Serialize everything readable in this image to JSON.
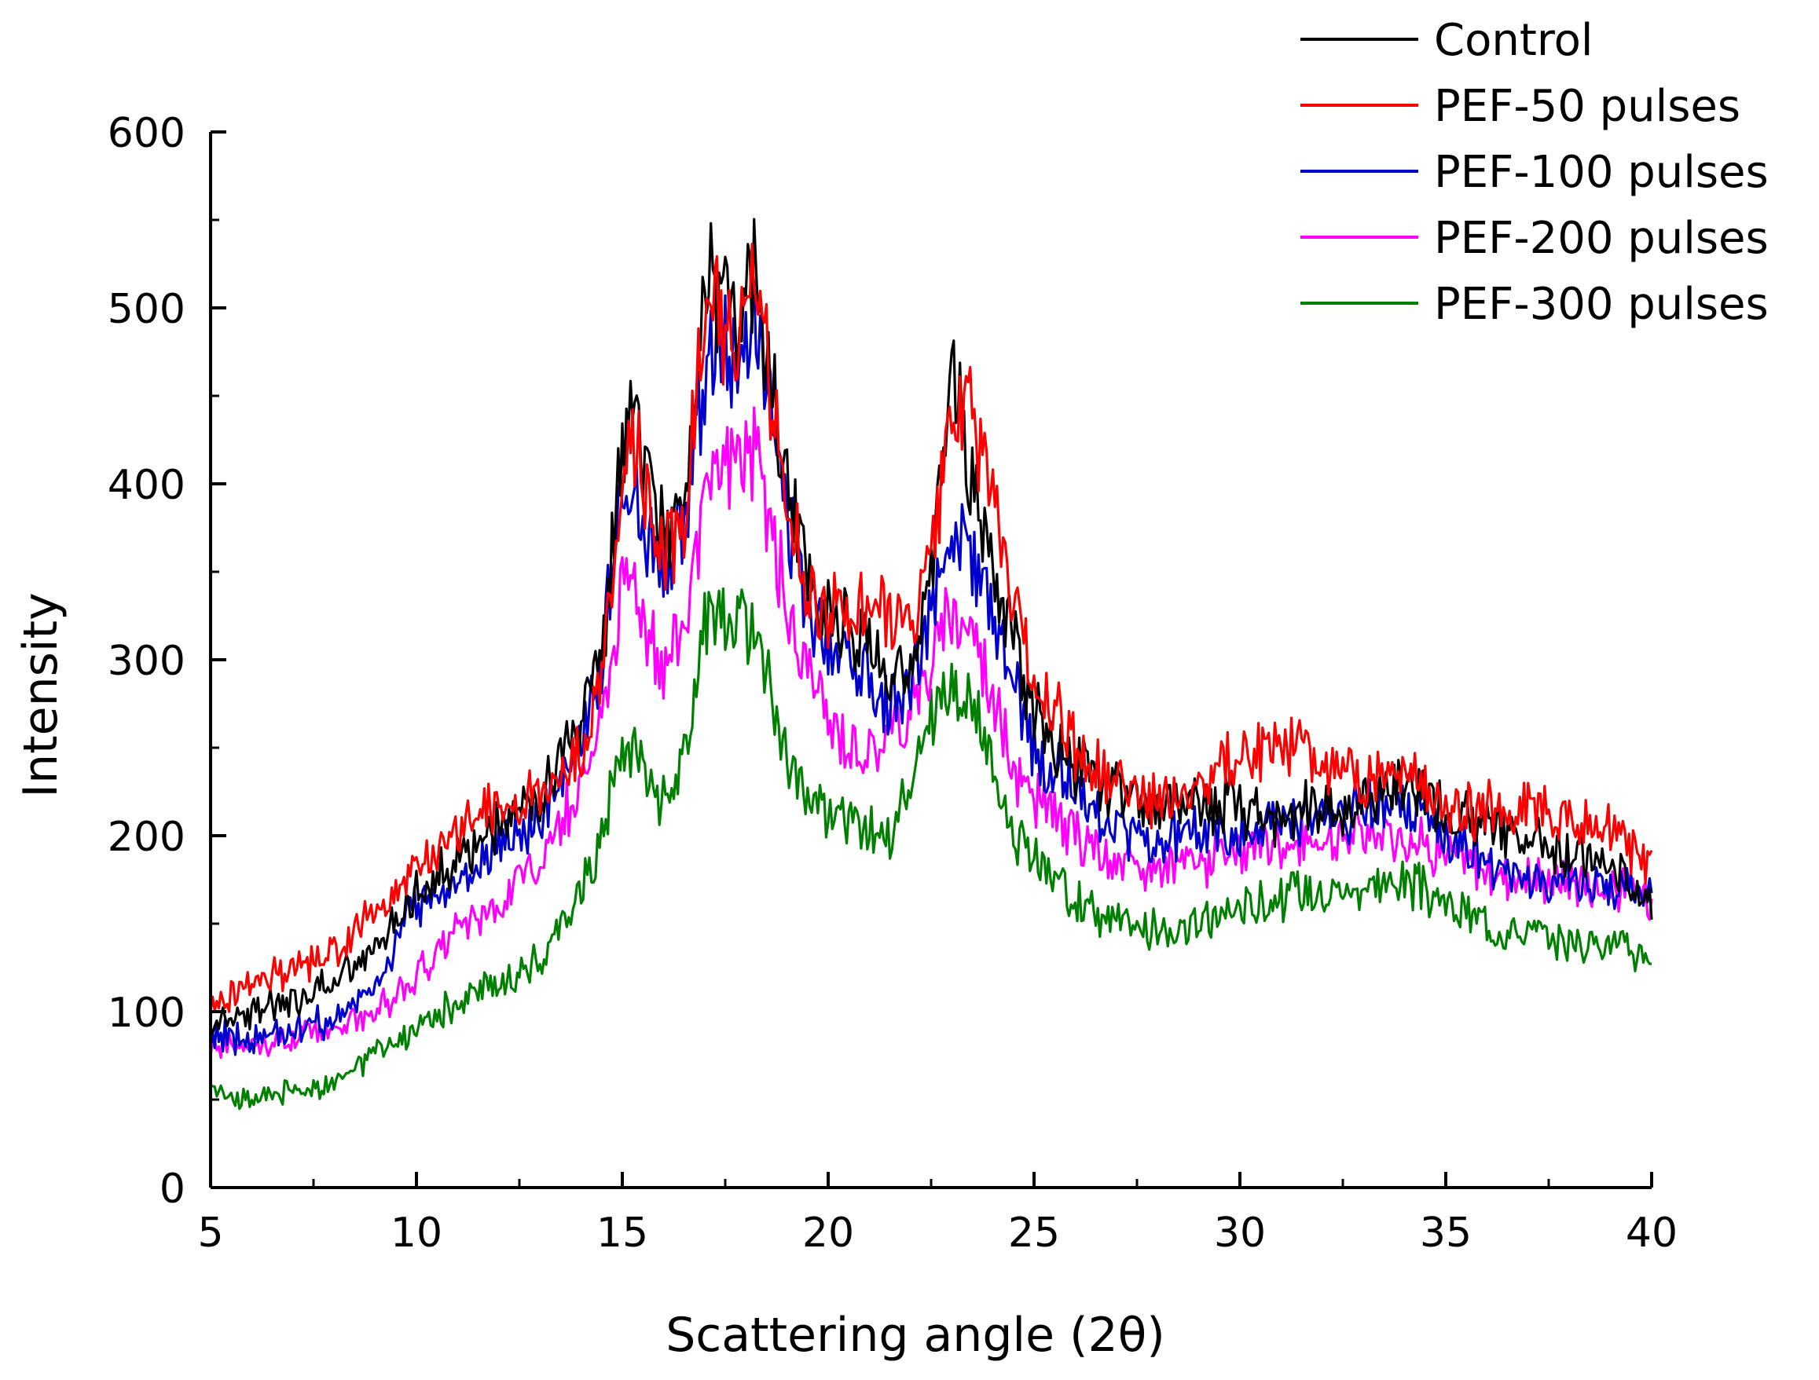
{
  "chart_data": {
    "type": "line",
    "title": "",
    "xlabel": "Scattering angle (2θ)",
    "ylabel": "Intensity",
    "xlim": [
      5,
      40
    ],
    "ylim": [
      0,
      600
    ],
    "xticks": [
      5,
      10,
      15,
      20,
      25,
      30,
      35,
      40
    ],
    "yticks": [
      0,
      100,
      200,
      300,
      400,
      500,
      600
    ],
    "legend_position": "top-right",
    "series": [
      {
        "name": "Control",
        "color": "#000000",
        "points": [
          [
            5,
            95
          ],
          [
            6,
            100
          ],
          [
            7,
            105
          ],
          [
            8,
            115
          ],
          [
            9,
            135
          ],
          [
            10,
            170
          ],
          [
            11,
            185
          ],
          [
            12,
            205
          ],
          [
            13,
            220
          ],
          [
            14,
            260
          ],
          [
            14.5,
            300
          ],
          [
            15,
            420
          ],
          [
            15.3,
            435
          ],
          [
            15.6,
            400
          ],
          [
            16,
            370
          ],
          [
            16.5,
            390
          ],
          [
            17,
            530
          ],
          [
            17.4,
            505
          ],
          [
            17.8,
            485
          ],
          [
            18.2,
            515
          ],
          [
            18.6,
            460
          ],
          [
            19,
            400
          ],
          [
            19.5,
            345
          ],
          [
            20,
            330
          ],
          [
            20.5,
            315
          ],
          [
            21,
            305
          ],
          [
            21.5,
            290
          ],
          [
            22,
            300
          ],
          [
            22.5,
            345
          ],
          [
            23,
            470
          ],
          [
            23.4,
            410
          ],
          [
            24,
            350
          ],
          [
            24.5,
            310
          ],
          [
            25,
            270
          ],
          [
            26,
            240
          ],
          [
            27,
            225
          ],
          [
            28,
            215
          ],
          [
            29,
            220
          ],
          [
            30,
            215
          ],
          [
            31,
            210
          ],
          [
            32,
            215
          ],
          [
            33,
            220
          ],
          [
            34,
            230
          ],
          [
            35,
            215
          ],
          [
            36,
            205
          ],
          [
            37,
            200
          ],
          [
            38,
            190
          ],
          [
            39,
            180
          ],
          [
            40,
            165
          ]
        ]
      },
      {
        "name": "PEF-50 pulses",
        "color": "#ff0000",
        "points": [
          [
            5,
            105
          ],
          [
            6,
            115
          ],
          [
            7,
            125
          ],
          [
            8,
            135
          ],
          [
            9,
            155
          ],
          [
            10,
            180
          ],
          [
            11,
            205
          ],
          [
            12,
            220
          ],
          [
            13,
            225
          ],
          [
            14,
            250
          ],
          [
            14.5,
            290
          ],
          [
            15,
            400
          ],
          [
            15.3,
            430
          ],
          [
            15.6,
            390
          ],
          [
            16,
            360
          ],
          [
            16.5,
            380
          ],
          [
            17,
            515
          ],
          [
            17.4,
            490
          ],
          [
            17.8,
            475
          ],
          [
            18.2,
            525
          ],
          [
            18.6,
            455
          ],
          [
            19,
            395
          ],
          [
            19.5,
            340
          ],
          [
            20,
            325
          ],
          [
            20.5,
            330
          ],
          [
            21,
            325
          ],
          [
            21.5,
            325
          ],
          [
            22,
            320
          ],
          [
            22.5,
            355
          ],
          [
            23,
            435
          ],
          [
            23.5,
            440
          ],
          [
            24,
            390
          ],
          [
            24.5,
            330
          ],
          [
            25,
            290
          ],
          [
            26,
            250
          ],
          [
            27,
            230
          ],
          [
            28,
            220
          ],
          [
            29,
            230
          ],
          [
            30,
            245
          ],
          [
            31,
            255
          ],
          [
            32,
            240
          ],
          [
            33,
            235
          ],
          [
            34,
            240
          ],
          [
            35,
            215
          ],
          [
            36,
            215
          ],
          [
            37,
            215
          ],
          [
            38,
            210
          ],
          [
            39,
            205
          ],
          [
            40,
            185
          ]
        ]
      },
      {
        "name": "PEF-100 pulses",
        "color": "#0000cc",
        "points": [
          [
            5,
            85
          ],
          [
            6,
            85
          ],
          [
            7,
            90
          ],
          [
            8,
            95
          ],
          [
            9,
            115
          ],
          [
            10,
            160
          ],
          [
            11,
            175
          ],
          [
            12,
            195
          ],
          [
            13,
            205
          ],
          [
            14,
            250
          ],
          [
            14.5,
            300
          ],
          [
            15,
            410
          ],
          [
            15.3,
            405
          ],
          [
            15.6,
            375
          ],
          [
            16,
            350
          ],
          [
            16.5,
            375
          ],
          [
            17,
            465
          ],
          [
            17.4,
            480
          ],
          [
            17.8,
            460
          ],
          [
            18.2,
            510
          ],
          [
            18.6,
            440
          ],
          [
            19,
            380
          ],
          [
            19.5,
            330
          ],
          [
            20,
            310
          ],
          [
            20.5,
            305
          ],
          [
            21,
            290
          ],
          [
            21.5,
            275
          ],
          [
            22,
            280
          ],
          [
            22.5,
            330
          ],
          [
            23,
            385
          ],
          [
            23.5,
            360
          ],
          [
            24,
            320
          ],
          [
            24.5,
            285
          ],
          [
            25,
            250
          ],
          [
            26,
            225
          ],
          [
            27,
            205
          ],
          [
            28,
            195
          ],
          [
            29,
            200
          ],
          [
            30,
            200
          ],
          [
            31,
            205
          ],
          [
            32,
            210
          ],
          [
            33,
            215
          ],
          [
            34,
            215
          ],
          [
            35,
            200
          ],
          [
            36,
            185
          ],
          [
            37,
            175
          ],
          [
            38,
            175
          ],
          [
            39,
            170
          ],
          [
            40,
            165
          ]
        ]
      },
      {
        "name": "PEF-200 pulses",
        "color": "#ff00ff",
        "points": [
          [
            5,
            80
          ],
          [
            6,
            80
          ],
          [
            7,
            85
          ],
          [
            8,
            90
          ],
          [
            9,
            100
          ],
          [
            10,
            120
          ],
          [
            11,
            145
          ],
          [
            12,
            160
          ],
          [
            13,
            185
          ],
          [
            14,
            230
          ],
          [
            14.5,
            265
          ],
          [
            15,
            340
          ],
          [
            15.3,
            350
          ],
          [
            15.6,
            320
          ],
          [
            16,
            300
          ],
          [
            16.5,
            320
          ],
          [
            17,
            380
          ],
          [
            17.4,
            410
          ],
          [
            17.8,
            420
          ],
          [
            18.2,
            415
          ],
          [
            18.6,
            380
          ],
          [
            19,
            330
          ],
          [
            19.5,
            290
          ],
          [
            20,
            265
          ],
          [
            20.5,
            255
          ],
          [
            21,
            250
          ],
          [
            21.5,
            260
          ],
          [
            22,
            270
          ],
          [
            22.5,
            300
          ],
          [
            23,
            330
          ],
          [
            23.5,
            320
          ],
          [
            24,
            280
          ],
          [
            24.5,
            240
          ],
          [
            25,
            220
          ],
          [
            26,
            200
          ],
          [
            27,
            185
          ],
          [
            28,
            180
          ],
          [
            29,
            185
          ],
          [
            30,
            190
          ],
          [
            31,
            195
          ],
          [
            32,
            200
          ],
          [
            33,
            200
          ],
          [
            34,
            200
          ],
          [
            35,
            190
          ],
          [
            36,
            180
          ],
          [
            37,
            175
          ],
          [
            38,
            175
          ],
          [
            39,
            170
          ],
          [
            40,
            165
          ]
        ]
      },
      {
        "name": "PEF-300 pulses",
        "color": "#008000",
        "points": [
          [
            5,
            55
          ],
          [
            6,
            50
          ],
          [
            7,
            55
          ],
          [
            8,
            60
          ],
          [
            9,
            75
          ],
          [
            10,
            90
          ],
          [
            11,
            105
          ],
          [
            12,
            115
          ],
          [
            13,
            130
          ],
          [
            14,
            170
          ],
          [
            14.5,
            200
          ],
          [
            15,
            255
          ],
          [
            15.3,
            250
          ],
          [
            15.6,
            230
          ],
          [
            16,
            220
          ],
          [
            16.5,
            240
          ],
          [
            17,
            320
          ],
          [
            17.4,
            320
          ],
          [
            17.8,
            325
          ],
          [
            18.2,
            315
          ],
          [
            18.6,
            285
          ],
          [
            19,
            240
          ],
          [
            19.5,
            225
          ],
          [
            20,
            215
          ],
          [
            20.5,
            205
          ],
          [
            21,
            200
          ],
          [
            21.5,
            195
          ],
          [
            22,
            230
          ],
          [
            22.5,
            265
          ],
          [
            23,
            285
          ],
          [
            23.5,
            280
          ],
          [
            24,
            240
          ],
          [
            24.5,
            200
          ],
          [
            25,
            185
          ],
          [
            26,
            165
          ],
          [
            27,
            150
          ],
          [
            28,
            145
          ],
          [
            29,
            150
          ],
          [
            30,
            160
          ],
          [
            31,
            165
          ],
          [
            32,
            170
          ],
          [
            33,
            170
          ],
          [
            34,
            175
          ],
          [
            35,
            160
          ],
          [
            36,
            150
          ],
          [
            37,
            145
          ],
          [
            38,
            140
          ],
          [
            39,
            140
          ],
          [
            40,
            130
          ]
        ]
      }
    ]
  }
}
